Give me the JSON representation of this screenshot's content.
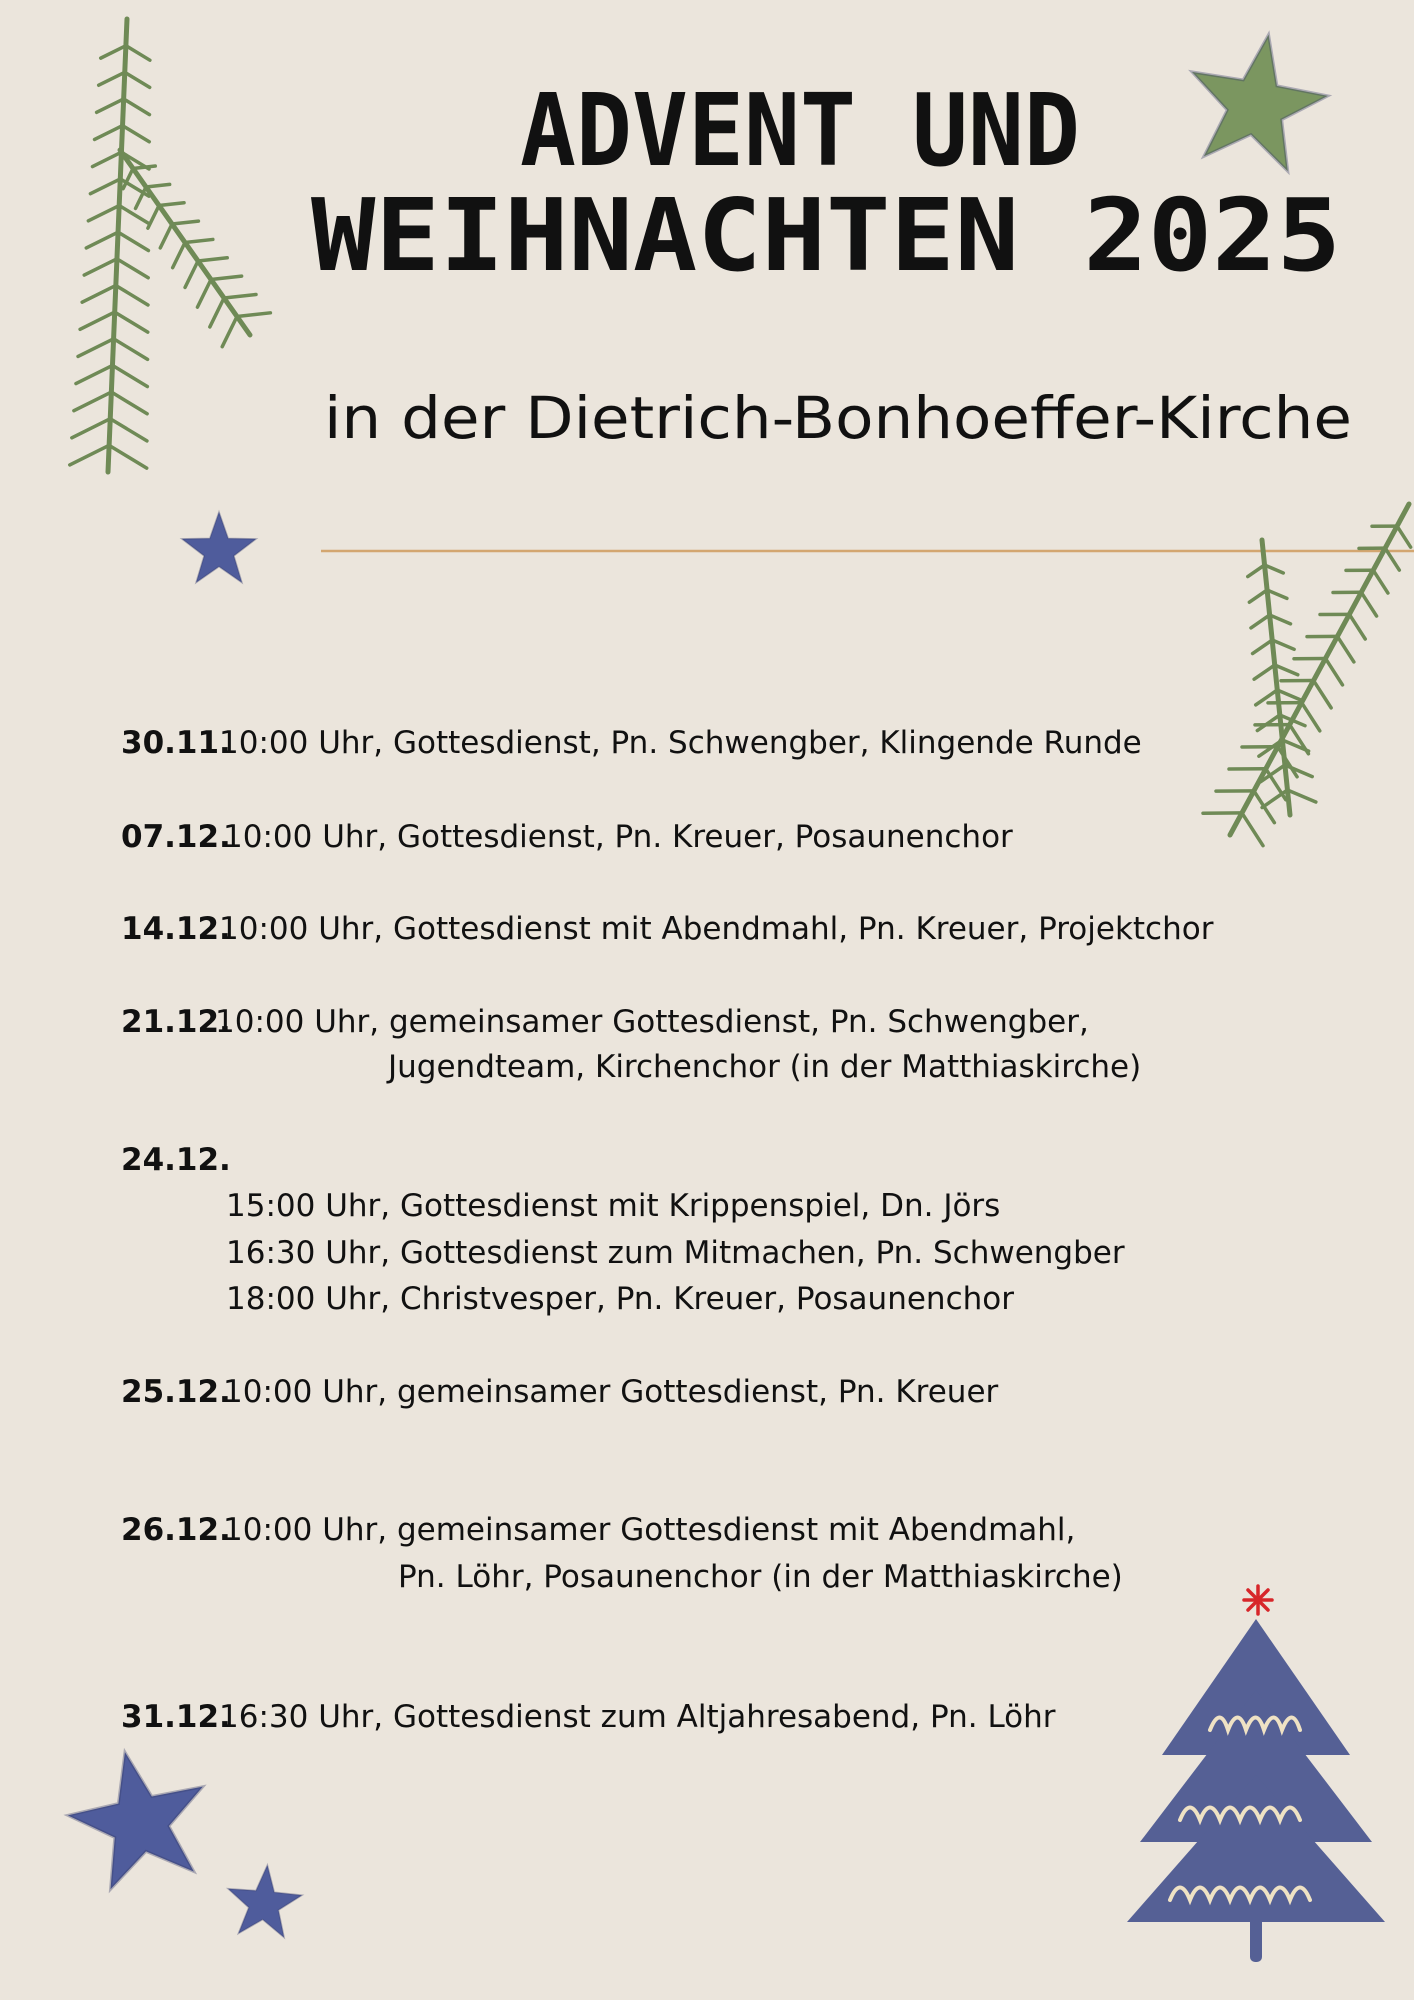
{
  "header": {
    "title_lines": [
      "ADVENT UND",
      "WEIHNACHTEN 2025"
    ],
    "subtitle": "in der Dietrich-Bonhoeffer-Kirche"
  },
  "events": [
    {
      "date": "30.11.",
      "lines": [
        "10:00 Uhr, Gottesdienst, Pn. Schwengber, Klingende Runde"
      ]
    },
    {
      "date": "07.12.",
      "lines": [
        "10:00 Uhr, Gottesdienst, Pn. Kreuer, Posaunenchor"
      ]
    },
    {
      "date": "14.12.",
      "lines": [
        "10:00 Uhr, Gottesdienst mit Abendmahl, Pn. Kreuer, Projektchor"
      ]
    },
    {
      "date": "21.12.",
      "lines": [
        "10:00 Uhr, gemeinsamer Gottesdienst, Pn. Schwengber,",
        "Jugendteam, Kirchenchor (in der Matthiaskirche)"
      ]
    },
    {
      "date": "24.12.",
      "lines": [
        "15:00 Uhr, Gottesdienst mit Krippenspiel, Dn. Jörs",
        "16:30 Uhr, Gottesdienst zum Mitmachen, Pn. Schwengber",
        "18:00 Uhr, Christvesper, Pn. Kreuer, Posaunenchor"
      ]
    },
    {
      "date": "25.12.",
      "lines": [
        "10:00 Uhr, gemeinsamer Gottesdienst, Pn. Kreuer"
      ]
    },
    {
      "date": "26.12.",
      "lines": [
        "10:00 Uhr, gemeinsamer Gottesdienst mit Abendmahl,",
        "Pn. Löhr, Posaunenchor (in der Matthiaskirche)"
      ]
    },
    {
      "date": "31.12.",
      "lines": [
        "16:30 Uhr, Gottesdienst zum Altjahresabend, Pn. Löhr"
      ]
    }
  ]
}
